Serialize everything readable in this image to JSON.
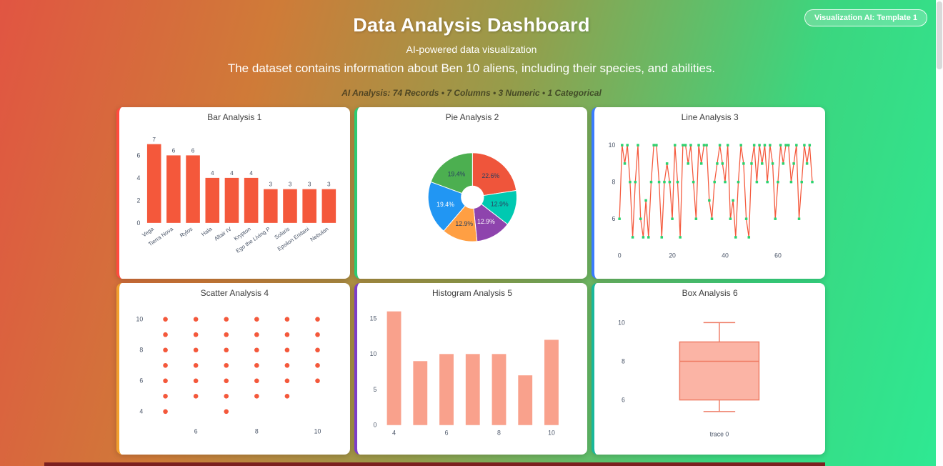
{
  "header": {
    "title": "Data Analysis Dashboard",
    "subtitle": "AI-powered data visualization",
    "description": "The dataset contains information about Ben 10 aliens, including their species, and abilities.",
    "analysis_line": "AI Analysis: 74 Records • 7 Columns • 3 Numeric • 1 Categorical",
    "badge": "Visualization AI: Template 1"
  },
  "theme": {
    "background_gradient": [
      "#e15542",
      "#cf7b38",
      "#959d4b",
      "#3bd67f",
      "#2ee993"
    ],
    "card_border_colors": [
      "#ff4b3e",
      "#2dcb73",
      "#3a7bfd",
      "#f1a02f",
      "#7d3dc9",
      "#19b89a"
    ],
    "footer_bar_color": "#7c2020",
    "tick_label_color": "#4a5568"
  },
  "chart_data": [
    {
      "type": "bar",
      "title": "Bar Analysis 1",
      "categories": [
        "Vega",
        "Tierra Nova",
        "Rylos",
        "Hala",
        "Altair IV",
        "Krypton",
        "Ego the Living P",
        "Solaris",
        "Epsilon Eridani",
        "Nebulon"
      ],
      "values": [
        7,
        6,
        6,
        4,
        4,
        4,
        3,
        3,
        3,
        3
      ],
      "bar_color": "#f4583b",
      "yticks": [
        0,
        2,
        4,
        6
      ],
      "ylim": [
        0,
        7.4
      ]
    },
    {
      "type": "pie",
      "title": "Pie Analysis 2",
      "slices": [
        {
          "label": "22.6%",
          "value": 22.6,
          "color": "#ef553b",
          "text_color": "#2a3f5f"
        },
        {
          "label": "12.9%",
          "value": 12.9,
          "color": "#00c9b1",
          "text_color": "#2a3f5f"
        },
        {
          "label": "12.9%",
          "value": 12.9,
          "color": "#8e44ad",
          "text_color": "#ffffff"
        },
        {
          "label": "12.9%",
          "value": 12.9,
          "color": "#ff9f43",
          "text_color": "#2a3f5f"
        },
        {
          "label": "19.4%",
          "value": 19.4,
          "color": "#2196f3",
          "text_color": "#ffffff"
        },
        {
          "label": "19.4%",
          "value": 19.4,
          "color": "#4caf50",
          "text_color": "#2a3f5f"
        }
      ],
      "hole_ratio": 0.26
    },
    {
      "type": "line",
      "title": "Line Analysis 3",
      "y": [
        6,
        10,
        9,
        10,
        8,
        5,
        8,
        10,
        6,
        5,
        7,
        5,
        8,
        10,
        10,
        8,
        5,
        8,
        9,
        8,
        6,
        10,
        8,
        5,
        10,
        10,
        9,
        10,
        8,
        6,
        10,
        9,
        10,
        10,
        7,
        6,
        8,
        9,
        10,
        9,
        8,
        10,
        6,
        7,
        5,
        8,
        10,
        9,
        6,
        5,
        9,
        10,
        8,
        10,
        9,
        10,
        8,
        10,
        9,
        6,
        8,
        10,
        9,
        10,
        10,
        8,
        9,
        10,
        6,
        8,
        10,
        9,
        10,
        8
      ],
      "line_color": "#f4583b",
      "marker_color": "#2bd36f",
      "xticks": [
        0,
        20,
        40,
        60
      ],
      "yticks": [
        6,
        8,
        10
      ],
      "ylim": [
        4.5,
        10.6
      ]
    },
    {
      "type": "scatter",
      "title": "Scatter Analysis 4",
      "points": [
        [
          5,
          4
        ],
        [
          5,
          5
        ],
        [
          5,
          6
        ],
        [
          5,
          7
        ],
        [
          5,
          8
        ],
        [
          5,
          9
        ],
        [
          5,
          10
        ],
        [
          6,
          5
        ],
        [
          6,
          6
        ],
        [
          6,
          7
        ],
        [
          6,
          8
        ],
        [
          6,
          9
        ],
        [
          6,
          10
        ],
        [
          7,
          4
        ],
        [
          7,
          5
        ],
        [
          7,
          6
        ],
        [
          7,
          7
        ],
        [
          7,
          8
        ],
        [
          7,
          9
        ],
        [
          7,
          10
        ],
        [
          8,
          5
        ],
        [
          8,
          6
        ],
        [
          8,
          7
        ],
        [
          8,
          8
        ],
        [
          8,
          9
        ],
        [
          8,
          10
        ],
        [
          9,
          5
        ],
        [
          9,
          6
        ],
        [
          9,
          7
        ],
        [
          9,
          8
        ],
        [
          9,
          9
        ],
        [
          9,
          10
        ],
        [
          10,
          6
        ],
        [
          10,
          7
        ],
        [
          10,
          8
        ],
        [
          10,
          9
        ],
        [
          10,
          10
        ]
      ],
      "dot_color": "#f4583b",
      "xticks": [
        6,
        8,
        10
      ],
      "yticks": [
        4,
        6,
        8,
        10
      ],
      "xlim": [
        4.4,
        10.6
      ],
      "ylim": [
        3.3,
        10.7
      ]
    },
    {
      "type": "histogram",
      "title": "Histogram Analysis 5",
      "bin_centers": [
        4,
        5,
        6,
        7,
        8,
        9,
        10
      ],
      "values": [
        16,
        9,
        10,
        10,
        10,
        7,
        12
      ],
      "bar_color": "#f9a18c",
      "xticks": [
        4,
        6,
        8,
        10
      ],
      "yticks": [
        0,
        5,
        10,
        15
      ],
      "xlim": [
        3.5,
        10.9
      ],
      "ylim": [
        0,
        16.6
      ]
    },
    {
      "type": "box",
      "title": "Box Analysis 6",
      "trace_label": "trace 0",
      "stats": {
        "min": 5.4,
        "q1": 6,
        "median": 8,
        "q3": 9,
        "max": 10
      },
      "box_fill": "#fbb4a5",
      "box_line": "#ee7a63",
      "yticks": [
        6,
        8,
        10
      ],
      "ylim": [
        4.7,
        10.8
      ]
    }
  ]
}
